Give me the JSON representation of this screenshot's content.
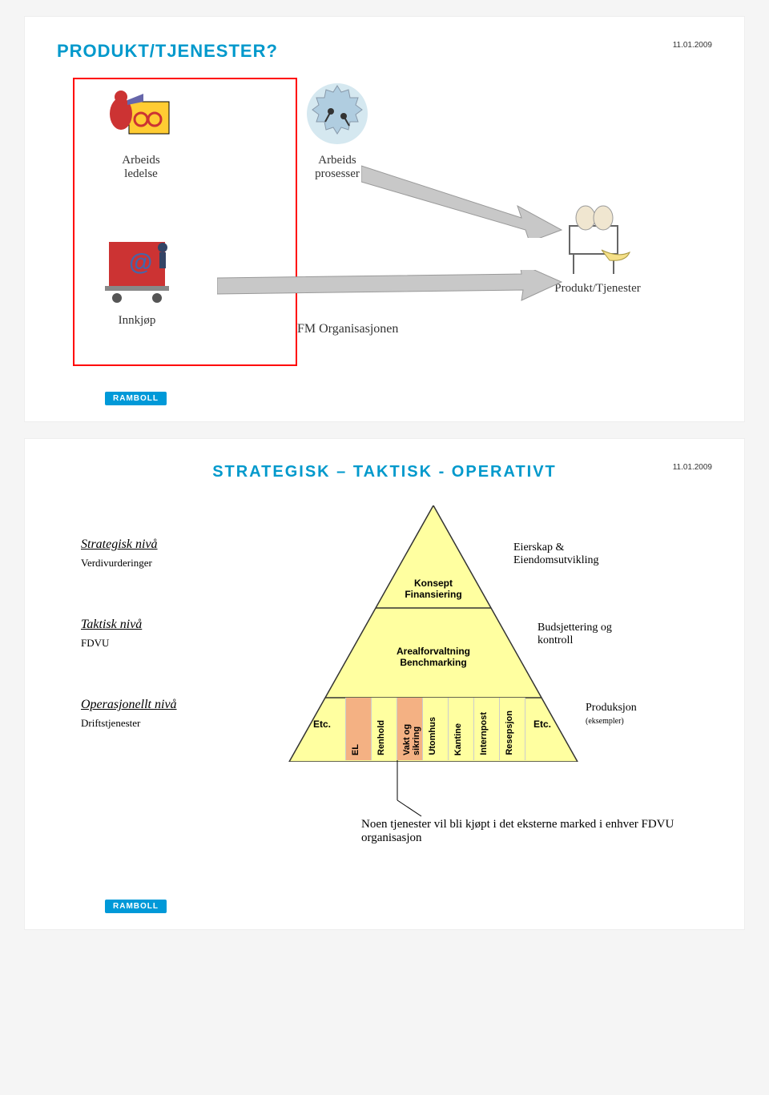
{
  "slide1": {
    "title": "PRODUKT/TJENESTER?",
    "date": "11.01.2009",
    "nodes": {
      "arbeids_ledelse": "Arbeids\nledelse",
      "arbeids_prosesser": "Arbeids\nprosesser",
      "innkjop": "Innkjøp",
      "fm_org": "FM Organisasjonen",
      "produkt": "Produkt/Tjenester"
    },
    "brand": "RAMBOLL"
  },
  "slide2": {
    "title": "STRATEGISK – TAKTISK - OPERATIVT",
    "date": "11.01.2009",
    "levels": {
      "strategic": {
        "title": "Strategisk nivå",
        "sub": "Verdivurderinger"
      },
      "tactical": {
        "title": "Taktisk nivå",
        "sub": "FDVU"
      },
      "operational": {
        "title": "Operasjonellt nivå",
        "sub": "Driftstjenester"
      }
    },
    "pyramid": {
      "top_line1": "Konsept",
      "top_line2": "Finansiering",
      "mid_line1": "Arealforvaltning",
      "mid_line2": "Benchmarking",
      "base_columns": [
        "EL",
        "Renhold",
        "Vakt og sikring",
        "Utomhus",
        "Kantine",
        "Internpost",
        "Resepsjon"
      ],
      "highlight_columns": [
        0,
        2
      ],
      "etc_left": "Etc.",
      "etc_right": "Etc.",
      "fill": "#ffffa0",
      "border": "#333333",
      "highlight_fill": "#f4b183"
    },
    "right_labels": {
      "top": "Eierskap &\nEiendomsutvikling",
      "mid": "Budsjettering og\nkontroll",
      "bottom": "Produksjon",
      "bottom_sub": "(eksempler)"
    },
    "footnote": "Noen tjenester vil bli kjøpt i det eksterne marked i enhver FDVU organisasjon",
    "brand": "RAMBOLL"
  }
}
